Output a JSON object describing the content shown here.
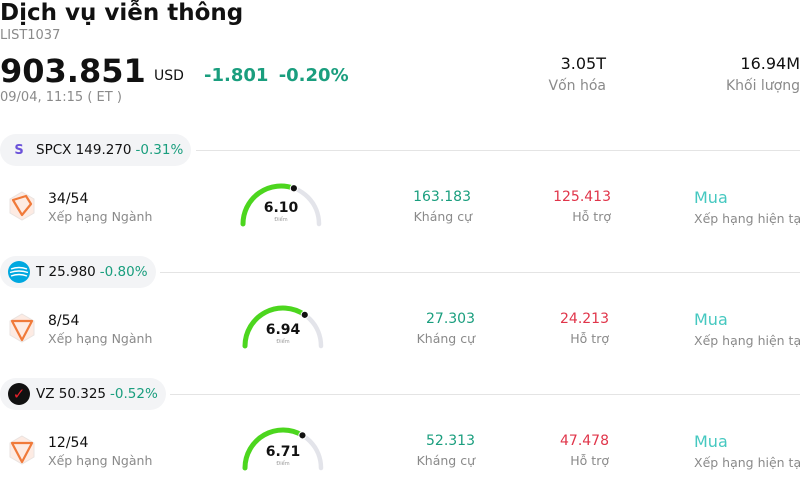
{
  "header": {
    "title": "Dịch vụ viễn thông",
    "code": "LIST1037",
    "price": "903.851",
    "currency": "USD",
    "change": "-1.801",
    "change_pct": "-0.20%",
    "timestamp": "09/04, 11:15 ( ET )",
    "stats": [
      {
        "value": "3.05T",
        "label": "Vốn hóa"
      },
      {
        "value": "16.94M",
        "label": "Khối lượng"
      }
    ]
  },
  "colors": {
    "positive": "#1a9e7e",
    "negative": "#e0354a",
    "rating": "#45c8c0",
    "gauge_fill": "#4cd61e",
    "gauge_track": "#e3e4ea"
  },
  "stocks": [
    {
      "symbol_price": "SPCX 149.270",
      "change_pct": "-0.31%",
      "logo_icon": "spcx-logo-icon",
      "logo_text": "S",
      "rank": "34/54",
      "rank_label": "Xếp hạng Ngành",
      "score": "6.10",
      "score_fraction": 0.61,
      "score_label": "Điểm",
      "resistance": "163.183",
      "resistance_label": "Kháng cự",
      "support": "125.413",
      "support_label": "Hỗ trợ",
      "rating": "Mua",
      "rating_label": "Xếp hạng hiện tại"
    },
    {
      "symbol_price": "T 25.980",
      "change_pct": "-0.80%",
      "logo_icon": "att-logo-icon",
      "logo_text": "",
      "rank": "8/54",
      "rank_label": "Xếp hạng Ngành",
      "score": "6.94",
      "score_fraction": 0.694,
      "score_label": "Điểm",
      "resistance": "27.303",
      "resistance_label": "Kháng cự",
      "support": "24.213",
      "support_label": "Hỗ trợ",
      "rating": "Mua",
      "rating_label": "Xếp hạng hiện tại"
    },
    {
      "symbol_price": "VZ 50.325",
      "change_pct": "-0.52%",
      "logo_icon": "verizon-logo-icon",
      "logo_text": "✓",
      "rank": "12/54",
      "rank_label": "Xếp hạng Ngành",
      "score": "6.71",
      "score_fraction": 0.671,
      "score_label": "Điểm",
      "resistance": "52.313",
      "resistance_label": "Kháng cự",
      "support": "47.478",
      "support_label": "Hỗ trợ",
      "rating": "Mua",
      "rating_label": "Xếp hạng hiện tại"
    }
  ]
}
